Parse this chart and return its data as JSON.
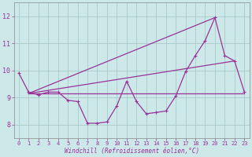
{
  "xlabel": "Windchill (Refroidissement éolien,°C)",
  "background_color": "#cce8e8",
  "grid_color": "#aacaca",
  "line_color": "#993399",
  "xlim": [
    -0.5,
    23.5
  ],
  "ylim": [
    7.5,
    12.5
  ],
  "yticks": [
    8,
    9,
    10,
    11,
    12
  ],
  "xticks": [
    0,
    1,
    2,
    3,
    4,
    5,
    6,
    7,
    8,
    9,
    10,
    11,
    12,
    13,
    14,
    15,
    16,
    17,
    18,
    19,
    20,
    21,
    22,
    23
  ],
  "main_x": [
    0,
    1,
    2,
    3,
    4,
    5,
    6,
    7,
    8,
    9,
    10,
    11,
    12,
    13,
    14,
    15,
    16,
    17,
    18,
    19,
    20,
    21,
    22,
    23
  ],
  "main_y": [
    9.9,
    9.2,
    9.1,
    9.2,
    9.2,
    8.9,
    8.85,
    8.05,
    8.05,
    8.1,
    8.7,
    9.6,
    8.85,
    8.4,
    8.45,
    8.5,
    9.05,
    9.95,
    10.55,
    11.1,
    11.95,
    10.55,
    10.35,
    9.2
  ],
  "line1_x": [
    1,
    23
  ],
  "line1_y": [
    9.15,
    9.15
  ],
  "line2_x": [
    1,
    20
  ],
  "line2_y": [
    9.15,
    11.95
  ],
  "line3_x": [
    1,
    22
  ],
  "line3_y": [
    9.15,
    10.35
  ],
  "tick_fontsize": 5,
  "xlabel_fontsize": 5.5
}
